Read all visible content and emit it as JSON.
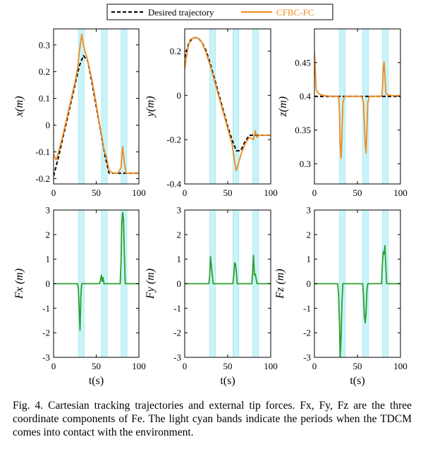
{
  "caption": {
    "label": "Fig. 4.",
    "text": "Cartesian tracking trajectories and external tip forces. Fx, Fy, Fz are the three coordinate components of Fe. The light cyan bands indicate the periods when the TDCM comes into contact with the environment."
  },
  "legend": {
    "desired": "Desired trajectory",
    "actual": "CFBC-FC"
  },
  "colors": {
    "desired": "#000000",
    "actual": "#f28a1e",
    "force": "#2ca02c",
    "band": "#c8f4f8"
  },
  "chart_data": [
    {
      "type": "line",
      "ylabel": "x(m)",
      "xlabel": "",
      "xlim": [
        0,
        100
      ],
      "ylim": [
        -0.22,
        0.36
      ],
      "xticks": [
        0,
        50,
        100
      ],
      "yticks": [
        -0.2,
        -0.1,
        0,
        0.1,
        0.2,
        0.3
      ],
      "yticklabels": [
        "-0.2",
        "-0.1",
        "0",
        "0.1",
        "0.2",
        "0.3"
      ],
      "bands": [
        [
          29,
          36
        ],
        [
          56,
          63
        ],
        [
          79,
          86
        ]
      ],
      "series": [
        {
          "name": "Desired trajectory",
          "style": "dashed",
          "x": [
            0,
            5,
            10,
            15,
            20,
            25,
            30,
            35,
            40,
            45,
            50,
            55,
            60,
            65,
            70,
            75,
            80,
            85,
            90,
            95,
            100
          ],
          "y": [
            -0.19,
            -0.13,
            -0.06,
            0.01,
            0.08,
            0.15,
            0.22,
            0.26,
            0.24,
            0.16,
            0.07,
            -0.02,
            -0.11,
            -0.18,
            -0.18,
            -0.18,
            -0.18,
            -0.18,
            -0.18,
            -0.18,
            -0.18
          ]
        },
        {
          "name": "CFBC-FC",
          "style": "solid",
          "x": [
            0,
            3,
            5,
            10,
            15,
            20,
            25,
            28,
            30,
            33,
            35,
            40,
            45,
            50,
            55,
            57,
            59,
            62,
            65,
            70,
            75,
            79,
            81,
            83,
            85,
            90,
            95,
            100
          ],
          "y": [
            -0.11,
            -0.13,
            -0.11,
            -0.05,
            0.02,
            0.09,
            0.16,
            0.21,
            0.27,
            0.34,
            0.3,
            0.24,
            0.17,
            0.08,
            -0.02,
            -0.05,
            -0.09,
            -0.12,
            -0.17,
            -0.18,
            -0.18,
            -0.16,
            -0.08,
            -0.14,
            -0.18,
            -0.18,
            -0.18,
            -0.18
          ]
        }
      ]
    },
    {
      "type": "line",
      "ylabel": "y(m)",
      "xlabel": "",
      "xlim": [
        0,
        100
      ],
      "ylim": [
        -0.4,
        0.3
      ],
      "xticks": [
        0,
        50,
        100
      ],
      "yticks": [
        -0.4,
        -0.2,
        0,
        0.2
      ],
      "yticklabels": [
        "-0.4",
        "-0.2",
        "0",
        "0.2"
      ],
      "bands": [
        [
          29,
          36
        ],
        [
          56,
          63
        ],
        [
          79,
          86
        ]
      ],
      "series": [
        {
          "name": "Desired trajectory",
          "style": "dashed",
          "x": [
            0,
            5,
            10,
            15,
            20,
            25,
            30,
            35,
            40,
            45,
            50,
            55,
            60,
            65,
            70,
            75,
            80,
            85,
            90,
            95,
            100
          ],
          "y": [
            0.17,
            0.24,
            0.26,
            0.26,
            0.24,
            0.2,
            0.14,
            0.07,
            0.0,
            -0.07,
            -0.14,
            -0.2,
            -0.25,
            -0.25,
            -0.21,
            -0.18,
            -0.18,
            -0.18,
            -0.18,
            -0.18,
            -0.18
          ]
        },
        {
          "name": "CFBC-FC",
          "style": "solid",
          "x": [
            0,
            3,
            6,
            10,
            15,
            20,
            25,
            30,
            35,
            40,
            45,
            50,
            55,
            58,
            60,
            63,
            66,
            70,
            75,
            80,
            82,
            84,
            86,
            90,
            95,
            100
          ],
          "y": [
            0.12,
            0.2,
            0.25,
            0.26,
            0.26,
            0.24,
            0.19,
            0.13,
            0.06,
            -0.01,
            -0.08,
            -0.15,
            -0.22,
            -0.3,
            -0.34,
            -0.3,
            -0.26,
            -0.22,
            -0.19,
            -0.2,
            -0.16,
            -0.19,
            -0.18,
            -0.18,
            -0.18,
            -0.18
          ]
        }
      ]
    },
    {
      "type": "line",
      "ylabel": "z(m)",
      "xlabel": "",
      "xlim": [
        0,
        100
      ],
      "ylim": [
        0.27,
        0.5
      ],
      "xticks": [
        0,
        50,
        100
      ],
      "yticks": [
        0.3,
        0.35,
        0.4,
        0.45
      ],
      "yticklabels": [
        "0.3",
        "0.35",
        "0.4",
        "0.45"
      ],
      "bands": [
        [
          29,
          36
        ],
        [
          56,
          63
        ],
        [
          79,
          86
        ]
      ],
      "series": [
        {
          "name": "Desired trajectory",
          "style": "dashed",
          "x": [
            0,
            100
          ],
          "y": [
            0.4,
            0.4
          ]
        },
        {
          "name": "CFBC-FC",
          "style": "solid",
          "x": [
            0,
            1,
            2,
            4,
            8,
            12,
            20,
            28,
            29,
            30,
            31,
            32,
            33,
            35,
            40,
            50,
            55,
            57,
            58,
            59,
            60,
            61,
            62,
            64,
            70,
            78,
            79,
            80,
            81,
            82,
            83,
            85,
            90,
            100
          ],
          "y": [
            0.465,
            0.44,
            0.41,
            0.405,
            0.402,
            0.401,
            0.4,
            0.4,
            0.38,
            0.33,
            0.308,
            0.34,
            0.39,
            0.4,
            0.4,
            0.4,
            0.4,
            0.39,
            0.36,
            0.33,
            0.316,
            0.35,
            0.39,
            0.4,
            0.4,
            0.4,
            0.41,
            0.44,
            0.451,
            0.43,
            0.405,
            0.402,
            0.401,
            0.401
          ]
        }
      ]
    },
    {
      "type": "line",
      "ylabel": "Fx (m)",
      "xlabel": "t(s)",
      "xlim": [
        0,
        100
      ],
      "ylim": [
        -3,
        3
      ],
      "xticks": [
        0,
        50,
        100
      ],
      "yticks": [
        -3,
        -2,
        -1,
        0,
        1,
        2,
        3
      ],
      "yticklabels": [
        "-3",
        "-2",
        "-1",
        "0",
        "1",
        "2",
        "3"
      ],
      "bands": [
        [
          29,
          36
        ],
        [
          56,
          63
        ],
        [
          79,
          86
        ]
      ],
      "series": [
        {
          "name": "Fx",
          "style": "solid",
          "x": [
            0,
            28,
            29,
            30,
            31,
            32,
            33,
            54,
            55,
            56,
            57,
            58,
            59,
            60,
            78,
            79,
            80,
            81,
            82,
            83,
            84,
            100
          ],
          "y": [
            0,
            0,
            -0.2,
            -1.0,
            -1.9,
            -0.5,
            0,
            0,
            0.15,
            0.35,
            0.1,
            0.25,
            0,
            0,
            0,
            0.8,
            2.5,
            2.9,
            2.6,
            1.2,
            0,
            0
          ]
        }
      ]
    },
    {
      "type": "line",
      "ylabel": "Fy (m)",
      "xlabel": "t(s)",
      "xlim": [
        0,
        100
      ],
      "ylim": [
        -3,
        3
      ],
      "xticks": [
        0,
        50,
        100
      ],
      "yticks": [
        -3,
        -2,
        -1,
        0,
        1,
        2,
        3
      ],
      "yticklabels": [
        "-3",
        "-2",
        "-1",
        "0",
        "1",
        "2",
        "3"
      ],
      "bands": [
        [
          29,
          36
        ],
        [
          56,
          63
        ],
        [
          79,
          86
        ]
      ],
      "series": [
        {
          "name": "Fy",
          "style": "solid",
          "x": [
            0,
            28,
            29,
            30,
            31,
            32,
            33,
            56,
            57,
            58,
            59,
            60,
            61,
            78,
            79,
            80,
            81,
            82,
            83,
            84,
            100
          ],
          "y": [
            0,
            0,
            0.3,
            1.1,
            0.7,
            0.4,
            0,
            0,
            0.3,
            0.85,
            0.8,
            0.5,
            0,
            0,
            0.5,
            1.15,
            0.35,
            0.4,
            0.2,
            0,
            0
          ]
        }
      ]
    },
    {
      "type": "line",
      "ylabel": "Fz (m)",
      "xlabel": "t(s)",
      "xlim": [
        0,
        100
      ],
      "ylim": [
        -3,
        3
      ],
      "xticks": [
        0,
        50,
        100
      ],
      "yticks": [
        -3,
        -2,
        -1,
        0,
        1,
        2,
        3
      ],
      "yticklabels": [
        "-3",
        "-2",
        "-1",
        "0",
        "1",
        "2",
        "3"
      ],
      "bands": [
        [
          29,
          36
        ],
        [
          56,
          63
        ],
        [
          79,
          86
        ]
      ],
      "series": [
        {
          "name": "Fz",
          "style": "solid",
          "x": [
            0,
            27,
            28,
            29,
            30,
            31,
            32,
            33,
            56,
            57,
            58,
            59,
            60,
            61,
            62,
            78,
            79,
            80,
            81,
            82,
            83,
            84,
            100
          ],
          "y": [
            0,
            0,
            -0.4,
            -1.5,
            -3.0,
            -2.2,
            -0.8,
            0,
            0,
            -0.4,
            -1.3,
            -1.6,
            -1.2,
            -0.3,
            0,
            0,
            0.8,
            1.3,
            1.2,
            1.55,
            0.7,
            0,
            0
          ]
        }
      ]
    }
  ]
}
